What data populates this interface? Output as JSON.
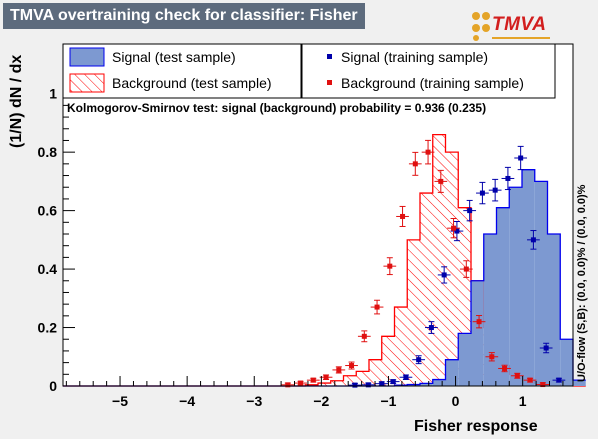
{
  "header": {
    "title": "TMVA overtraining check for classifier: Fisher",
    "logo_text": "TMVA"
  },
  "chart_data": {
    "type": "histogram",
    "xlabel": "Fisher response",
    "ylabel": "(1/N) dN / dx",
    "xlim": [
      -5.85,
      1.75
    ],
    "ylim": [
      0,
      1.17
    ],
    "xticks": [
      "−5",
      "−4",
      "−3",
      "−2",
      "−1",
      "0",
      "1"
    ],
    "yticks": [
      "0",
      "0.2",
      "0.4",
      "0.6",
      "0.8",
      "1"
    ],
    "ks_text": "Kolmogorov-Smirnov test: signal (background) probability = 0.936 (0.235)",
    "overflow_text": "U/O-flow (S,B): (0.0, 0.0)% / (0.0, 0.0)%",
    "bins": {
      "start": -5.85,
      "width": 0.19
    },
    "signal_test": [
      0,
      0,
      0,
      0,
      0,
      0,
      0,
      0,
      0,
      0,
      0,
      0,
      0,
      0,
      0,
      0,
      0,
      0,
      0,
      0,
      0,
      0,
      0,
      0,
      0,
      0,
      0.003,
      0.005,
      0.009,
      0.022,
      0.09,
      0.18,
      0.36,
      0.52,
      0.61,
      0.68,
      0.74,
      0.7,
      0.52,
      0.16,
      0.02
    ],
    "background_test": [
      0,
      0,
      0,
      0,
      0,
      0,
      0,
      0,
      0,
      0,
      0,
      0,
      0,
      0,
      0,
      0,
      0,
      0,
      0,
      0.004,
      0.01,
      0.018,
      0.035,
      0.05,
      0.09,
      0.17,
      0.27,
      0.5,
      0.66,
      0.86,
      0.8,
      0.61,
      0.36,
      0.2,
      0.07,
      0.04,
      0.02,
      0.01,
      0.004,
      0.001,
      0
    ],
    "signal_training": [
      {
        "x": -1.5,
        "y": 0.003
      },
      {
        "x": -1.3,
        "y": 0.004
      },
      {
        "x": -1.1,
        "y": 0.008
      },
      {
        "x": -0.93,
        "y": 0.015
      },
      {
        "x": -0.74,
        "y": 0.03
      },
      {
        "x": -0.55,
        "y": 0.09
      },
      {
        "x": -0.36,
        "y": 0.2
      },
      {
        "x": -0.17,
        "y": 0.38
      },
      {
        "x": 0.02,
        "y": 0.53
      },
      {
        "x": 0.21,
        "y": 0.6
      },
      {
        "x": 0.4,
        "y": 0.66
      },
      {
        "x": 0.59,
        "y": 0.67
      },
      {
        "x": 0.78,
        "y": 0.71
      },
      {
        "x": 0.97,
        "y": 0.78
      },
      {
        "x": 1.16,
        "y": 0.5
      },
      {
        "x": 1.35,
        "y": 0.13
      },
      {
        "x": 1.54,
        "y": 0.02
      }
    ],
    "background_training": [
      {
        "x": -2.5,
        "y": 0.004
      },
      {
        "x": -2.31,
        "y": 0.01
      },
      {
        "x": -2.12,
        "y": 0.02
      },
      {
        "x": -1.93,
        "y": 0.03
      },
      {
        "x": -1.74,
        "y": 0.055
      },
      {
        "x": -1.55,
        "y": 0.07
      },
      {
        "x": -1.36,
        "y": 0.17
      },
      {
        "x": -1.17,
        "y": 0.27
      },
      {
        "x": -0.98,
        "y": 0.41
      },
      {
        "x": -0.79,
        "y": 0.58
      },
      {
        "x": -0.6,
        "y": 0.76
      },
      {
        "x": -0.41,
        "y": 0.8
      },
      {
        "x": -0.22,
        "y": 0.7
      },
      {
        "x": -0.03,
        "y": 0.54
      },
      {
        "x": 0.16,
        "y": 0.4
      },
      {
        "x": 0.35,
        "y": 0.22
      },
      {
        "x": 0.54,
        "y": 0.1
      },
      {
        "x": 0.73,
        "y": 0.06
      },
      {
        "x": 0.92,
        "y": 0.035
      },
      {
        "x": 1.11,
        "y": 0.02
      },
      {
        "x": 1.3,
        "y": 0.005
      }
    ],
    "legend": [
      {
        "key": "signal_test",
        "label": "Signal (test sample)"
      },
      {
        "key": "signal_training",
        "label": "Signal (training sample)"
      },
      {
        "key": "background_test",
        "label": "Background (test sample)"
      },
      {
        "key": "background_training",
        "label": "Background (training sample)"
      }
    ],
    "colors": {
      "signal_fill": "#7d99d1",
      "signal_line": "#0000ee",
      "background_line": "#ff0000",
      "signal_points": "#0000aa",
      "background_points": "#e01010"
    }
  }
}
